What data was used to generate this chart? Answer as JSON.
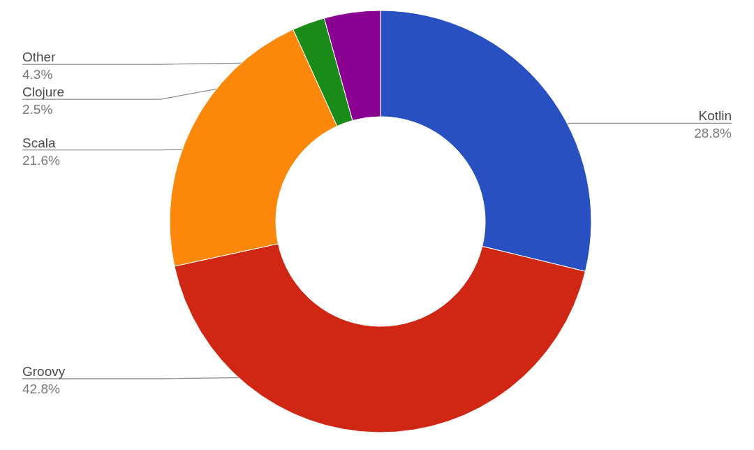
{
  "chart_data": {
    "type": "donut",
    "categories": [
      "Kotlin",
      "Groovy",
      "Scala",
      "Clojure",
      "Other"
    ],
    "values": [
      28.8,
      42.8,
      21.6,
      2.5,
      4.3
    ],
    "colors": [
      "#2850c0",
      "#d02614",
      "#fb870b",
      "#1a8a18",
      "#8a0090"
    ],
    "value_labels": [
      "28.8%",
      "42.8%",
      "21.6%",
      "2.5%",
      "4.3%"
    ]
  }
}
